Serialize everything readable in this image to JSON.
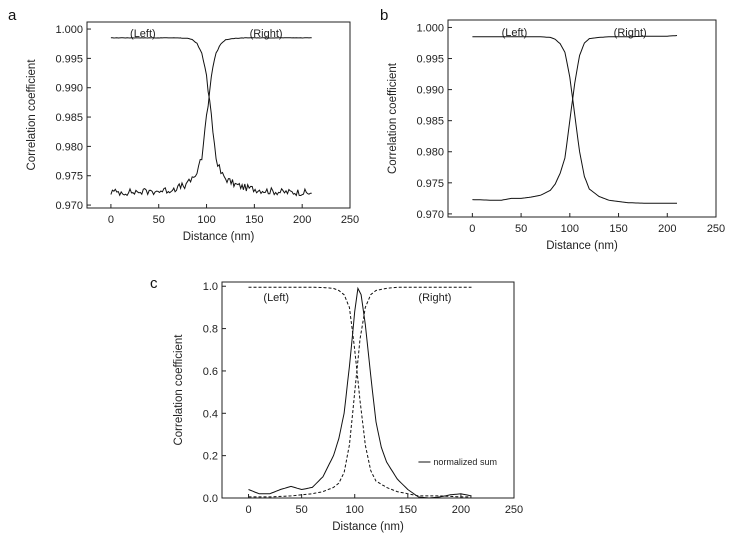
{
  "chart_data": [
    {
      "type": "line",
      "panel_label": "a",
      "xlabel": "Distance (nm)",
      "ylabel": "Correlation coefficient",
      "xlim": [
        -25,
        250
      ],
      "ylim": [
        0.9695,
        1.0012
      ],
      "xticks": [
        0,
        50,
        100,
        150,
        200,
        250
      ],
      "yticks": [
        0.97,
        0.975,
        0.98,
        0.985,
        0.99,
        0.995,
        1.0
      ],
      "ytick_labels": [
        "0.970",
        "0.975",
        "0.980",
        "0.985",
        "0.990",
        "0.995",
        "1.000"
      ],
      "annotations": [
        {
          "text": "(Left)",
          "x": 20,
          "y": 0.9993
        },
        {
          "text": "(Right)",
          "x": 145,
          "y": 0.9993
        }
      ],
      "series": [
        {
          "x": [
            0,
            20,
            40,
            60,
            70,
            80,
            85,
            90,
            95,
            100,
            105,
            110,
            115,
            120,
            130,
            140,
            160,
            180,
            200,
            210
          ],
          "values": [
            0.9985,
            0.9985,
            0.9985,
            0.9985,
            0.9985,
            0.9984,
            0.9982,
            0.9975,
            0.996,
            0.992,
            0.985,
            0.978,
            0.9755,
            0.9745,
            0.9735,
            0.973,
            0.9725,
            0.9722,
            0.9722,
            0.972
          ],
          "noise": 0.0006
        },
        {
          "x": [
            0,
            20,
            40,
            60,
            70,
            80,
            85,
            90,
            95,
            100,
            105,
            110,
            115,
            120,
            130,
            140,
            160,
            180,
            200,
            210
          ],
          "values": [
            0.9722,
            0.9722,
            0.9723,
            0.9725,
            0.973,
            0.9735,
            0.9745,
            0.9755,
            0.978,
            0.985,
            0.992,
            0.996,
            0.9975,
            0.9982,
            0.9984,
            0.9985,
            0.9985,
            0.9985,
            0.9985,
            0.9985
          ],
          "noise": 0.0006
        }
      ]
    },
    {
      "type": "line",
      "panel_label": "b",
      "xlabel": "Distance (nm)",
      "ylabel": "Correlation coefficient",
      "xlim": [
        -25,
        250
      ],
      "ylim": [
        0.9695,
        1.0012
      ],
      "xticks": [
        0,
        50,
        100,
        150,
        200,
        250
      ],
      "yticks": [
        0.97,
        0.975,
        0.98,
        0.985,
        0.99,
        0.995,
        1.0
      ],
      "ytick_labels": [
        "0.970",
        "0.975",
        "0.980",
        "0.985",
        "0.990",
        "0.995",
        "1.000"
      ],
      "annotations": [
        {
          "text": "(Left)",
          "x": 30,
          "y": 0.9993
        },
        {
          "text": "(Right)",
          "x": 145,
          "y": 0.9993
        }
      ],
      "series": [
        {
          "x": [
            0,
            20,
            40,
            60,
            70,
            80,
            85,
            90,
            95,
            100,
            105,
            110,
            115,
            120,
            130,
            140,
            160,
            180,
            200,
            210
          ],
          "values": [
            0.9985,
            0.9985,
            0.9985,
            0.9985,
            0.9985,
            0.9984,
            0.9981,
            0.9974,
            0.996,
            0.992,
            0.986,
            0.98,
            0.976,
            0.974,
            0.9728,
            0.9722,
            0.9718,
            0.9717,
            0.9717,
            0.9717
          ]
        },
        {
          "x": [
            0,
            20,
            30,
            40,
            50,
            60,
            70,
            80,
            85,
            90,
            95,
            100,
            105,
            110,
            115,
            120,
            130,
            140,
            160,
            180,
            200,
            210
          ],
          "values": [
            0.9723,
            0.9722,
            0.9722,
            0.9725,
            0.9725,
            0.9727,
            0.973,
            0.9738,
            0.9748,
            0.9765,
            0.979,
            0.985,
            0.991,
            0.9955,
            0.9975,
            0.9982,
            0.9984,
            0.9985,
            0.9985,
            0.9986,
            0.9986,
            0.9987
          ]
        }
      ]
    },
    {
      "type": "line",
      "panel_label": "c",
      "xlabel": "Distance (nm)",
      "ylabel": "Correlation coefficient",
      "xlim": [
        -25,
        250
      ],
      "ylim": [
        0,
        1.02
      ],
      "xticks": [
        0,
        50,
        100,
        150,
        200,
        250
      ],
      "yticks": [
        0.0,
        0.2,
        0.4,
        0.6,
        0.8,
        1.0
      ],
      "ytick_labels": [
        "0.0",
        "0.2",
        "0.4",
        "0.6",
        "0.8",
        "1.0"
      ],
      "annotations": [
        {
          "text": "(Left)",
          "x": 14,
          "y": 0.95
        },
        {
          "text": "(Right)",
          "x": 160,
          "y": 0.95
        }
      ],
      "legend": {
        "entries": [
          "normalized sum"
        ],
        "position": "lower-right"
      },
      "series": [
        {
          "style": "dashed",
          "x": [
            0,
            20,
            40,
            60,
            70,
            80,
            85,
            90,
            95,
            100,
            105,
            110,
            115,
            120,
            130,
            140,
            150,
            160,
            180,
            200,
            210
          ],
          "values": [
            0.995,
            0.995,
            0.995,
            0.995,
            0.994,
            0.99,
            0.98,
            0.96,
            0.9,
            0.7,
            0.46,
            0.25,
            0.13,
            0.08,
            0.05,
            0.03,
            0.02,
            0.01,
            0.01,
            0.005,
            0.005
          ]
        },
        {
          "style": "dashed",
          "x": [
            0,
            20,
            40,
            60,
            70,
            80,
            85,
            90,
            95,
            100,
            105,
            110,
            115,
            120,
            130,
            140,
            160,
            180,
            200,
            210
          ],
          "values": [
            0.005,
            0.005,
            0.01,
            0.02,
            0.03,
            0.05,
            0.07,
            0.12,
            0.25,
            0.5,
            0.75,
            0.9,
            0.96,
            0.98,
            0.99,
            0.995,
            0.995,
            0.995,
            0.995,
            0.995
          ]
        },
        {
          "name": "normalized sum",
          "style": "solid",
          "x": [
            0,
            10,
            20,
            30,
            40,
            50,
            60,
            70,
            80,
            85,
            90,
            95,
            100,
            103,
            106,
            110,
            115,
            120,
            125,
            130,
            140,
            150,
            160,
            170,
            180,
            190,
            200,
            210
          ],
          "values": [
            0.04,
            0.02,
            0.02,
            0.04,
            0.055,
            0.04,
            0.05,
            0.1,
            0.2,
            0.28,
            0.4,
            0.62,
            0.88,
            0.99,
            0.96,
            0.82,
            0.58,
            0.36,
            0.24,
            0.17,
            0.09,
            0.04,
            0.005,
            0.0,
            0.005,
            0.015,
            0.02,
            0.01
          ]
        }
      ]
    }
  ]
}
